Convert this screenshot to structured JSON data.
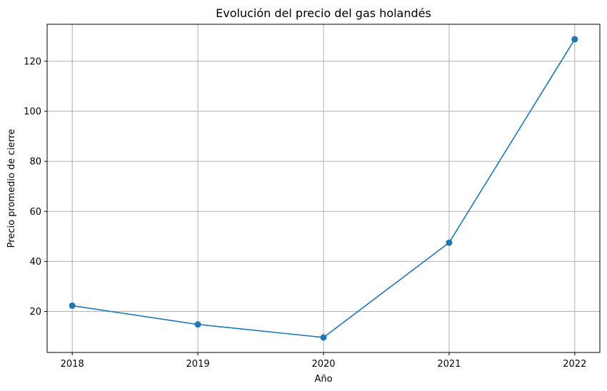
{
  "chart_data": {
    "type": "line",
    "title": "Evolución del precio del gas holandés",
    "xlabel": "Año",
    "ylabel": "Precio promedio de cierre",
    "x": [
      2018,
      2019,
      2020,
      2021,
      2022
    ],
    "x_tick_labels": [
      "2018",
      "2019",
      "2020",
      "2021",
      "2022"
    ],
    "series": [
      {
        "values": [
          22.3,
          14.8,
          9.6,
          47.5,
          128.8
        ],
        "color": "#1f77b4",
        "marker": "circle"
      }
    ],
    "xlim": [
      2017.8,
      2022.2
    ],
    "ylim": [
      3.6,
      134.8
    ],
    "y_ticks": [
      20,
      40,
      60,
      80,
      100,
      120
    ],
    "y_tick_labels": [
      "20",
      "40",
      "60",
      "80",
      "100",
      "120"
    ],
    "grid": true,
    "legend": false
  }
}
